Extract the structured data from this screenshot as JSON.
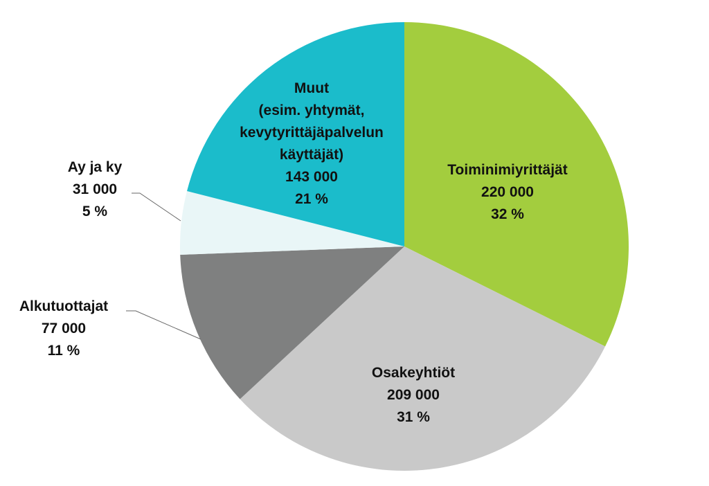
{
  "chart_data": {
    "type": "pie",
    "start_angle": "12 o'clock",
    "direction": "clockwise",
    "slices": [
      {
        "label": [
          "Toiminimiyrittäjät"
        ],
        "value": 220000,
        "value_label": "220 000",
        "percent_label": "32 %",
        "color": "#a3cd3e"
      },
      {
        "label": [
          "Osakeyhtiöt"
        ],
        "value": 209000,
        "value_label": "209 000",
        "percent_label": "31 %",
        "color": "#c9c9c9"
      },
      {
        "label": [
          "Alkutuottajat"
        ],
        "value": 77000,
        "value_label": "77 000",
        "percent_label": "11 %",
        "color": "#7f8080"
      },
      {
        "label": [
          "Ay ja ky"
        ],
        "value": 31000,
        "value_label": "31 000",
        "percent_label": "5 %",
        "color": "#e9f6f7"
      },
      {
        "label": [
          "Muut",
          "(esim. yhtymät,",
          "kevytyrittäjäpalvelun",
          "käyttäjät)"
        ],
        "value": 143000,
        "value_label": "143 000",
        "percent_label": "21 %",
        "color": "#1bbccb"
      }
    ]
  }
}
